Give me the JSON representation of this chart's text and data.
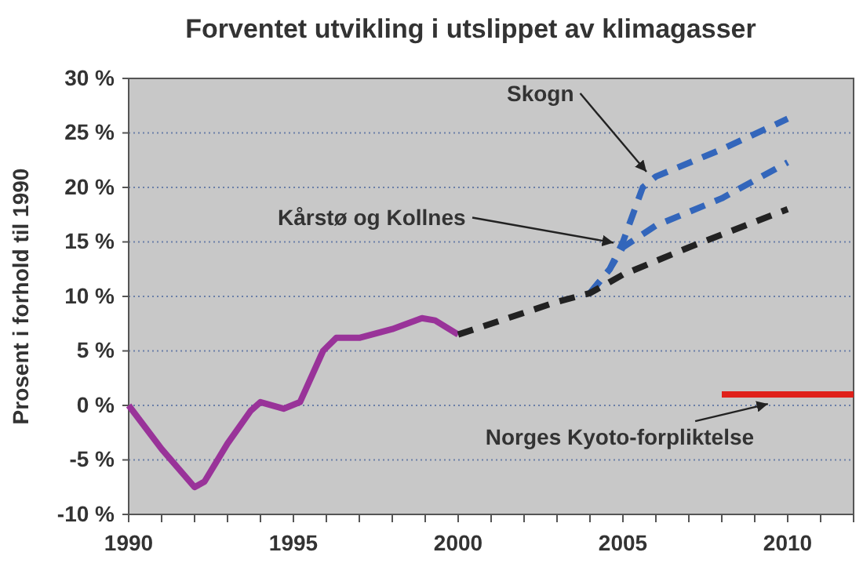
{
  "chart_data": {
    "type": "line",
    "title": "Forventet utvikling i utslippet av klimagasser",
    "ylabel": "Prosent i forhold til 1990",
    "xlim": [
      1990,
      2012
    ],
    "ylim": [
      -10,
      30
    ],
    "xticks": [
      1990,
      {
        "value": 1991,
        "label": null
      },
      {
        "value": 1992,
        "label": null
      },
      {
        "value": 1993,
        "label": null
      },
      {
        "value": 1994,
        "label": null
      },
      1995,
      {
        "value": 1996,
        "label": null
      },
      {
        "value": 1997,
        "label": null
      },
      {
        "value": 1998,
        "label": null
      },
      {
        "value": 1999,
        "label": null
      },
      2000,
      {
        "value": 2001,
        "label": null
      },
      {
        "value": 2002,
        "label": null
      },
      {
        "value": 2003,
        "label": null
      },
      {
        "value": 2004,
        "label": null
      },
      2005,
      {
        "value": 2006,
        "label": null
      },
      {
        "value": 2007,
        "label": null
      },
      {
        "value": 2008,
        "label": null
      },
      {
        "value": 2009,
        "label": null
      },
      2010,
      {
        "value": 2011,
        "label": null
      }
    ],
    "yticks": [
      {
        "value": -10,
        "label": "-10 %"
      },
      {
        "value": -5,
        "label": "-5 %"
      },
      {
        "value": 0,
        "label": "0 %"
      },
      {
        "value": 5,
        "label": "5 %"
      },
      {
        "value": 10,
        "label": "10 %"
      },
      {
        "value": 15,
        "label": "15 %"
      },
      {
        "value": 20,
        "label": "20 %"
      },
      {
        "value": 25,
        "label": "25 %"
      },
      {
        "value": 30,
        "label": "30 %"
      }
    ],
    "grid": "y",
    "series": [
      {
        "color": "#993399",
        "line_style": "solid",
        "x": [
          1990,
          1991,
          1992,
          1992.3,
          1993,
          1993.7,
          1994,
          1994.7,
          1995.2,
          1995.9,
          1996.3,
          1997,
          1998,
          1998.9,
          1999.3,
          2000
        ],
        "values": [
          0,
          -4,
          -7.5,
          -7,
          -3.5,
          -0.5,
          0.3,
          -0.3,
          0.3,
          5,
          6.2,
          6.2,
          7,
          8,
          7.8,
          6.5
        ]
      },
      {
        "color": "#3366bb",
        "line_style": "dashed",
        "x": [
          2004,
          2004.6,
          2005,
          2005.6,
          2006,
          2008,
          2010
        ],
        "values": [
          10.3,
          12.5,
          15,
          20,
          21,
          23.5,
          26.3
        ]
      },
      {
        "color": "#3366bb",
        "line_style": "dashed",
        "x": [
          2004,
          2004.6,
          2005,
          2006,
          2008,
          2010
        ],
        "values": [
          10.3,
          12.5,
          14.5,
          16.5,
          19,
          22.3
        ]
      },
      {
        "color": "#222222",
        "line_style": "dashed",
        "x": [
          2000,
          2003,
          2004,
          2005,
          2007,
          2010
        ],
        "values": [
          6.5,
          9.5,
          10.3,
          12,
          14.5,
          18
        ]
      },
      {
        "color": "#e0201a",
        "line_style": "solid",
        "x": [
          2008,
          2012
        ],
        "values": [
          1,
          1
        ]
      }
    ],
    "annotations": [
      {
        "text": "Skogn",
        "x": 2006,
        "y": 21
      },
      {
        "text": "Kårstø og Kollnes",
        "x": 2005,
        "y": 14.5
      },
      {
        "text": "Norges Kyoto-forpliktelse",
        "x": 2009.4,
        "y": 1
      }
    ]
  }
}
